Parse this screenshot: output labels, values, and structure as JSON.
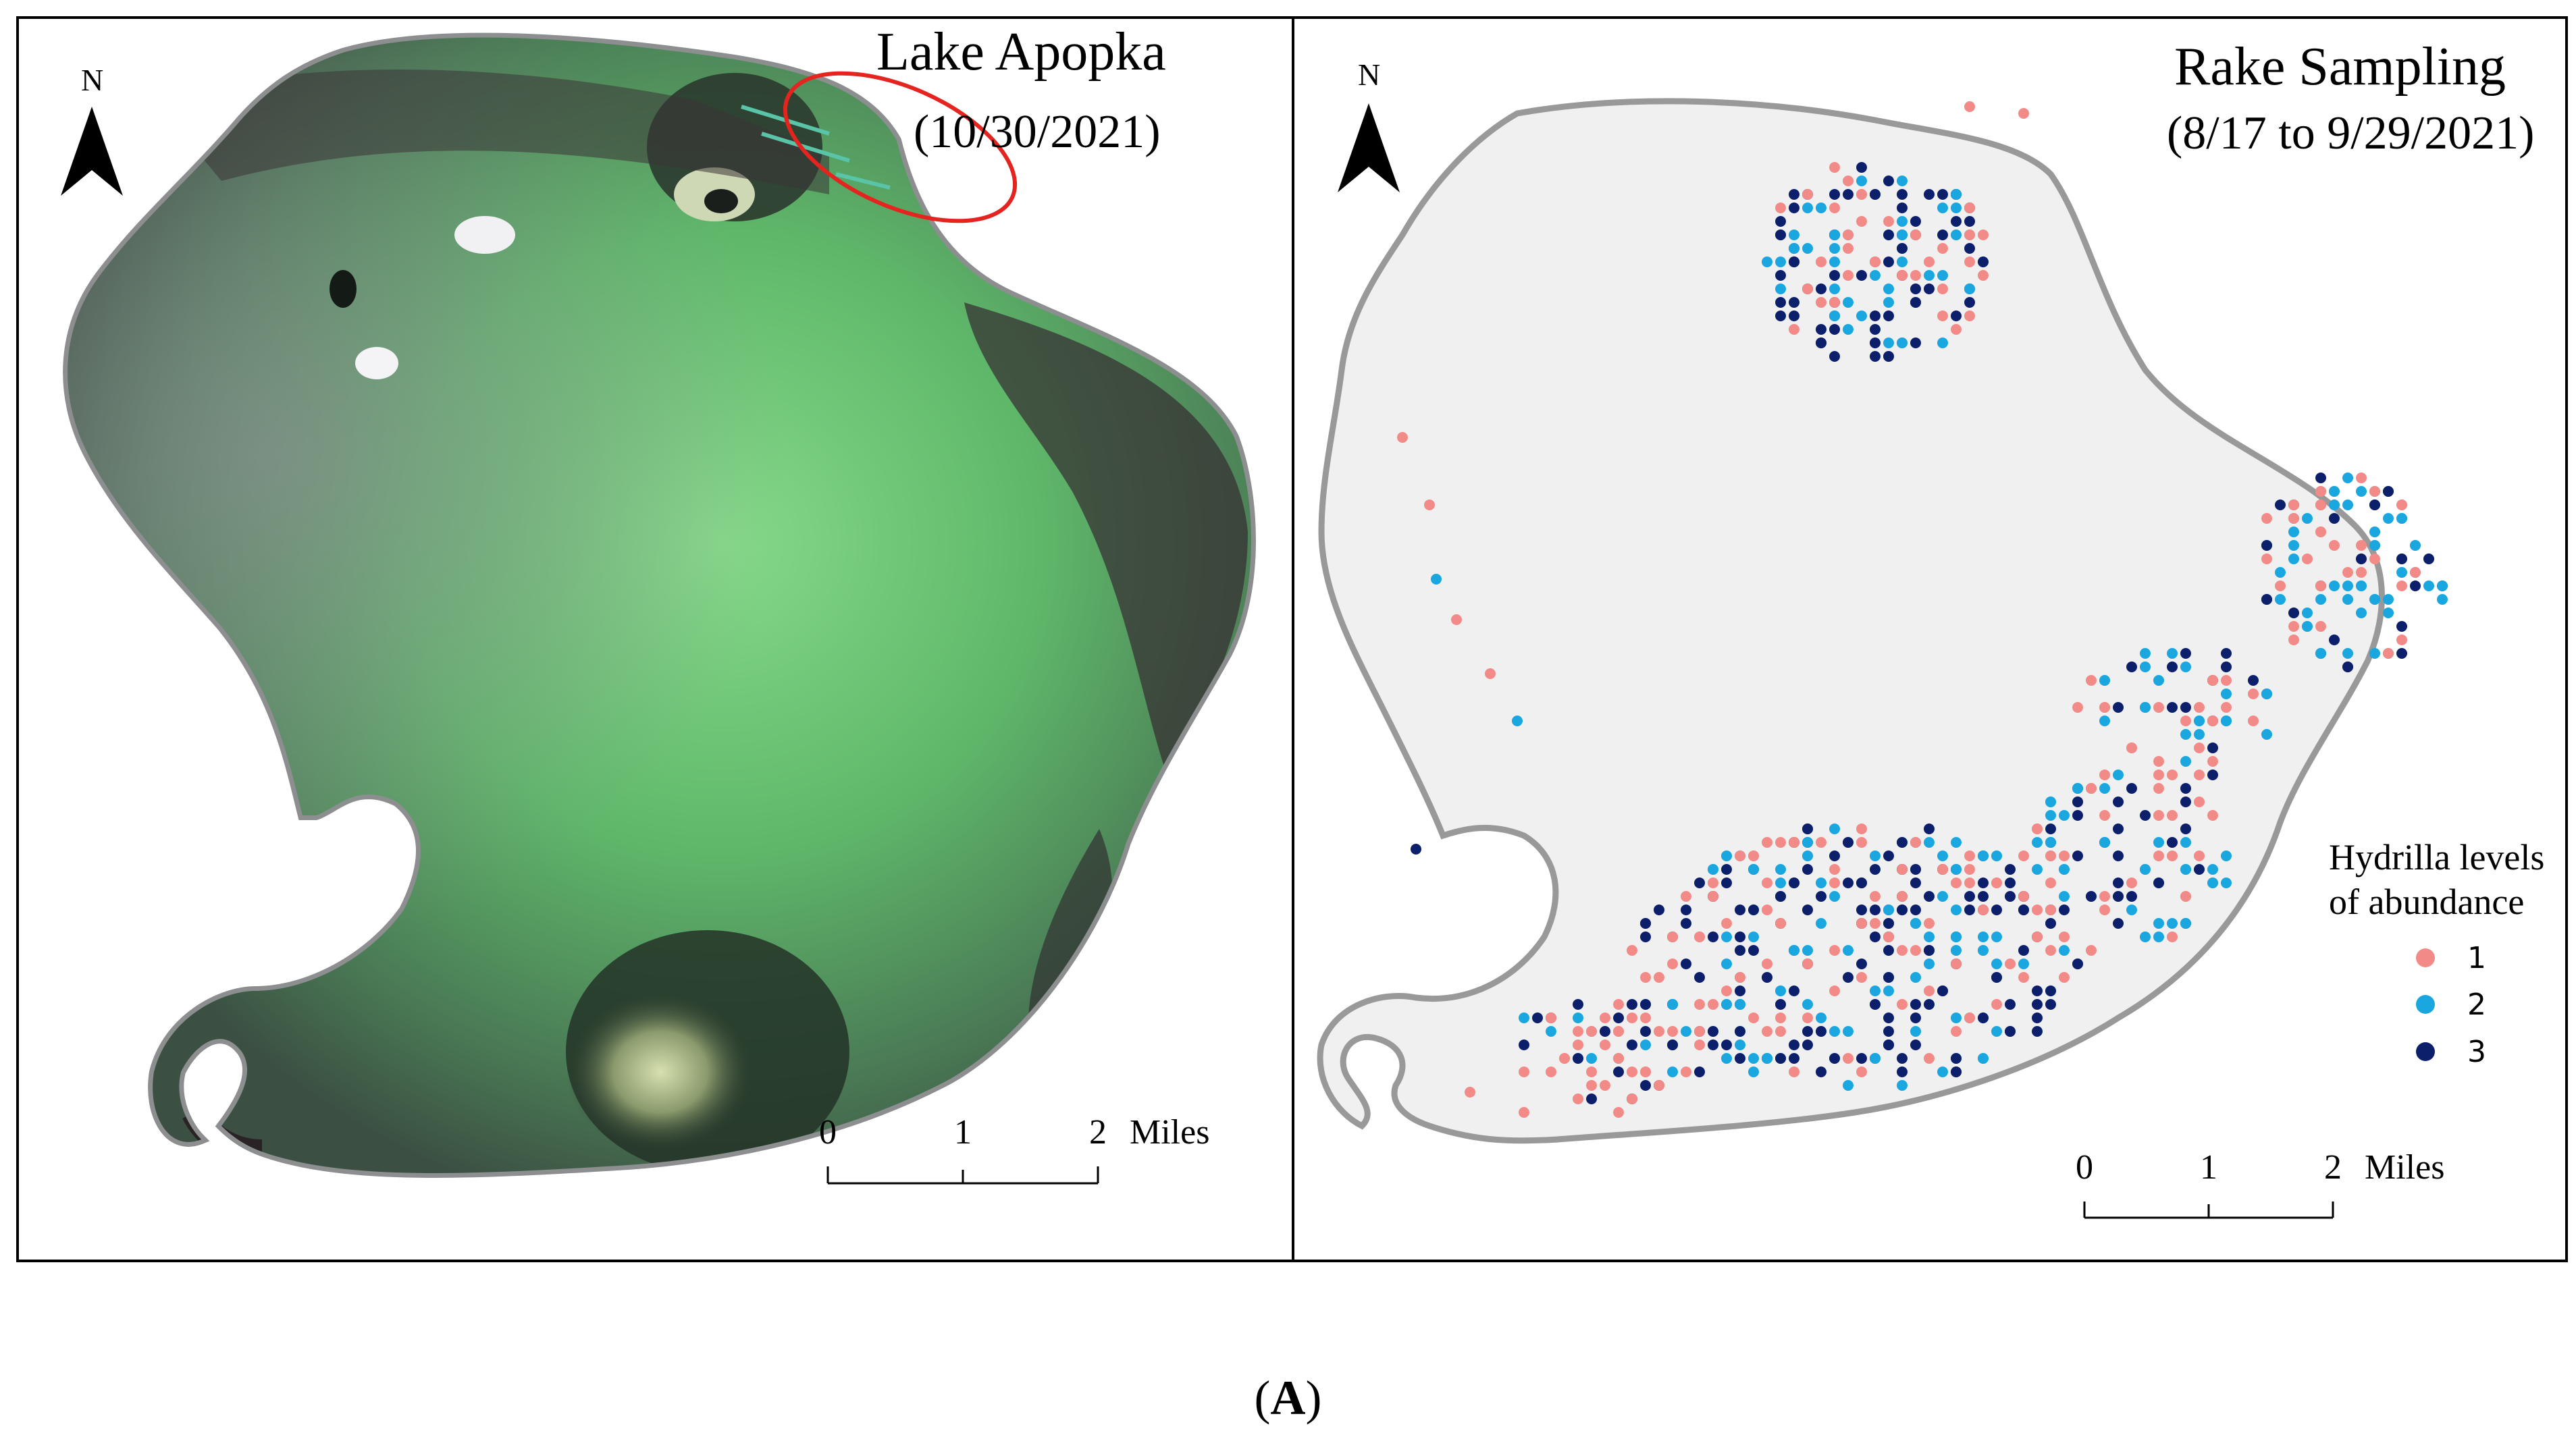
{
  "left_panel": {
    "title": "Lake Apopka",
    "date": "(10/30/2021)",
    "north_label": "N",
    "scale": {
      "ticks": [
        "0",
        "1",
        "2"
      ],
      "unit": "Miles"
    },
    "highlight_color": "#e5231f"
  },
  "right_panel": {
    "title": "Rake Sampling",
    "date": "(8/17 to 9/29/2021)",
    "north_label": "N",
    "scale": {
      "ticks": [
        "0",
        "1",
        "2"
      ],
      "unit": "Miles"
    },
    "legend": {
      "title_line1": "Hydrilla levels",
      "title_line2": "of abundance",
      "items": [
        {
          "label": "1",
          "color": "#f28a87"
        },
        {
          "label": "2",
          "color": "#1aa7e0"
        },
        {
          "label": "3",
          "color": "#0b1f6b"
        }
      ]
    }
  },
  "caption": {
    "open": "(",
    "letter": "A",
    "close": ")"
  }
}
